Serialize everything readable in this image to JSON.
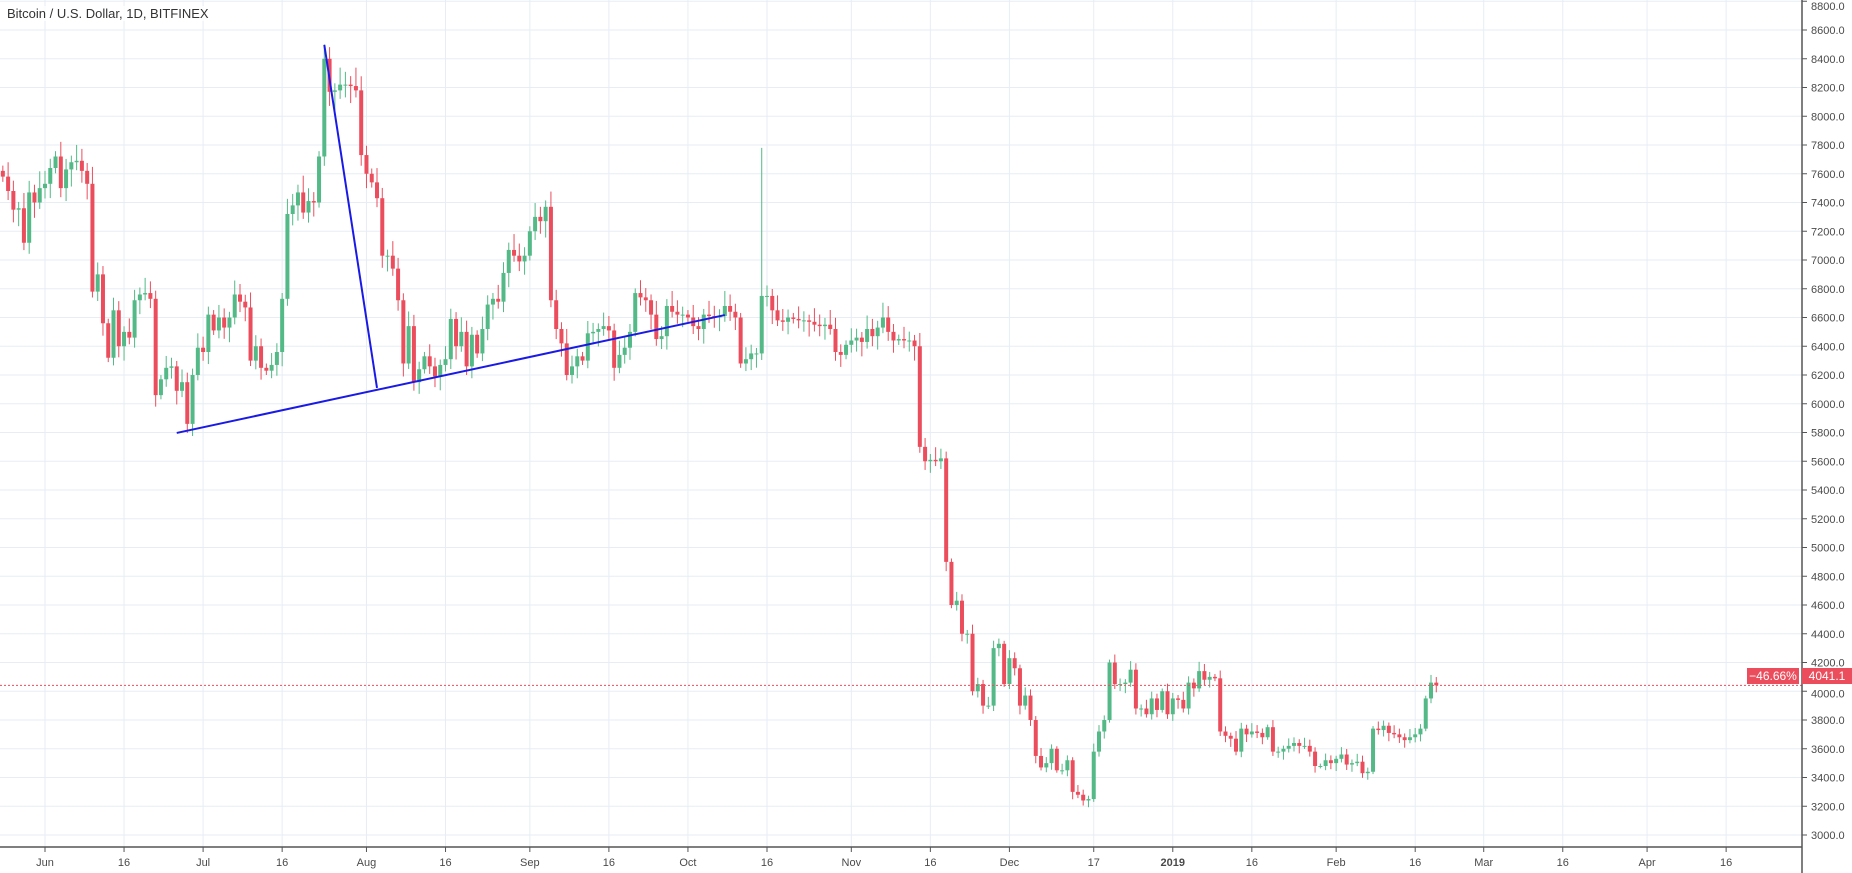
{
  "header": {
    "title": "Bitcoin / U.S. Dollar, 1D, BITFINEX"
  },
  "last_price": {
    "change_label": "−46.66%",
    "price_label": "4041.1"
  },
  "colors": {
    "up": "#53b987",
    "down": "#eb4d5c",
    "grid": "#e6eef4",
    "axis": "#555555",
    "trendline": "#1a1ae6",
    "tag": "#eb4d5c"
  },
  "chart_data": {
    "type": "candlestick",
    "title": "Bitcoin / U.S. Dollar, 1D, BITFINEX",
    "start_date": "2018-05-24",
    "ylim": [
      2960,
      8840
    ],
    "yticks": [
      3000,
      3200,
      3400,
      3600,
      3800,
      4000,
      4200,
      4400,
      4600,
      4800,
      5000,
      5200,
      5400,
      5600,
      5800,
      6000,
      6200,
      6400,
      6600,
      6800,
      7000,
      7200,
      7400,
      7600,
      7800,
      8000,
      8200,
      8400,
      8600,
      8800
    ],
    "xticks": [
      {
        "date": "2018-06-01",
        "label": "Jun"
      },
      {
        "date": "2018-06-16",
        "label": "16"
      },
      {
        "date": "2018-07-01",
        "label": "Jul"
      },
      {
        "date": "2018-07-16",
        "label": "16"
      },
      {
        "date": "2018-08-01",
        "label": "Aug"
      },
      {
        "date": "2018-08-16",
        "label": "16"
      },
      {
        "date": "2018-09-01",
        "label": "Sep"
      },
      {
        "date": "2018-09-16",
        "label": "16"
      },
      {
        "date": "2018-10-01",
        "label": "Oct"
      },
      {
        "date": "2018-10-16",
        "label": "16"
      },
      {
        "date": "2018-11-01",
        "label": "Nov"
      },
      {
        "date": "2018-11-16",
        "label": "16"
      },
      {
        "date": "2018-12-01",
        "label": "Dec"
      },
      {
        "date": "2018-12-17",
        "label": "17"
      },
      {
        "date": "2019-01-01",
        "label": "2019"
      },
      {
        "date": "2019-01-16",
        "label": "16"
      },
      {
        "date": "2019-02-01",
        "label": "Feb"
      },
      {
        "date": "2019-02-16",
        "label": "16"
      },
      {
        "date": "2019-03-01",
        "label": "Mar"
      },
      {
        "date": "2019-03-16",
        "label": "16"
      },
      {
        "date": "2019-04-01",
        "label": "Apr"
      },
      {
        "date": "2019-04-16",
        "label": "16"
      }
    ],
    "first_open": 7620,
    "wick_pct": 0.012,
    "closes": [
      7580,
      7480,
      7350,
      7360,
      7120,
      7470,
      7400,
      7500,
      7530,
      7640,
      7720,
      7500,
      7630,
      7680,
      7690,
      7620,
      7530,
      6780,
      6900,
      6560,
      6320,
      6650,
      6400,
      6500,
      6460,
      6720,
      6760,
      6770,
      6730,
      6060,
      6170,
      6250,
      6260,
      6090,
      6150,
      5860,
      6200,
      6390,
      6360,
      6620,
      6510,
      6600,
      6530,
      6600,
      6760,
      6710,
      6670,
      6300,
      6400,
      6250,
      6230,
      6270,
      6360,
      6730,
      7320,
      7380,
      7470,
      7330,
      7410,
      7400,
      7720,
      8400,
      8170,
      8180,
      8220,
      8220,
      8210,
      8180,
      7730,
      7600,
      7540,
      7430,
      7030,
      7030,
      6940,
      6720,
      6280,
      6540,
      6150,
      6240,
      6330,
      6260,
      6190,
      6270,
      6310,
      6590,
      6400,
      6500,
      6260,
      6480,
      6350,
      6520,
      6690,
      6730,
      6710,
      6910,
      7070,
      7030,
      6990,
      7030,
      7200,
      7300,
      7270,
      7370,
      6720,
      6520,
      6420,
      6200,
      6260,
      6330,
      6300,
      6490,
      6500,
      6520,
      6540,
      6510,
      6250,
      6340,
      6390,
      6500,
      6770,
      6740,
      6720,
      6620,
      6450,
      6470,
      6680,
      6640,
      6620,
      6620,
      6600,
      6540,
      6520,
      6620,
      6610,
      6600,
      6610,
      6680,
      6640,
      6600,
      6280,
      6310,
      6350,
      6350,
      6750,
      6750,
      6650,
      6580,
      6570,
      6600,
      6590,
      6580,
      6580,
      6570,
      6550,
      6540,
      6550,
      6520,
      6360,
      6340,
      6410,
      6440,
      6460,
      6430,
      6520,
      6470,
      6530,
      6600,
      6500,
      6440,
      6450,
      6440,
      6440,
      6400,
      5700,
      5600,
      5610,
      5600,
      5620,
      4900,
      4600,
      4630,
      4400,
      4400,
      4000,
      4050,
      3900,
      3900,
      4300,
      4330,
      4050,
      4230,
      4160,
      3900,
      3970,
      3800,
      3550,
      3470,
      3500,
      3600,
      3450,
      3450,
      3520,
      3300,
      3280,
      3240,
      3250,
      3580,
      3720,
      3800,
      4200,
      4050,
      4050,
      4060,
      4150,
      3880,
      3880,
      3840,
      3950,
      3870,
      4000,
      3840,
      3950,
      3940,
      3880,
      4060,
      4020,
      4140,
      4080,
      4100,
      4090,
      3720,
      3690,
      3670,
      3580,
      3740,
      3700,
      3720,
      3710,
      3680,
      3750,
      3580,
      3580,
      3600,
      3620,
      3640,
      3620,
      3620,
      3580,
      3480,
      3480,
      3520,
      3500,
      3530,
      3560,
      3490,
      3500,
      3510,
      3430,
      3440,
      3740,
      3730,
      3760,
      3710,
      3700,
      3680,
      3660,
      3680,
      3700,
      3740,
      3950,
      4060,
      4041.1
    ],
    "high_overrides": {
      "2018-10-15": 7780,
      "2018-07-24": 8500
    },
    "last_close": 4041.1,
    "change_pct": -46.66,
    "trendlines": [
      {
        "from": {
          "date": "2018-06-26",
          "price": 5797
        },
        "to": {
          "date": "2018-10-08",
          "price": 6617
        }
      },
      {
        "from": {
          "date": "2018-07-24",
          "price": 8496
        },
        "to": {
          "date": "2018-08-03",
          "price": 6110
        }
      }
    ]
  }
}
